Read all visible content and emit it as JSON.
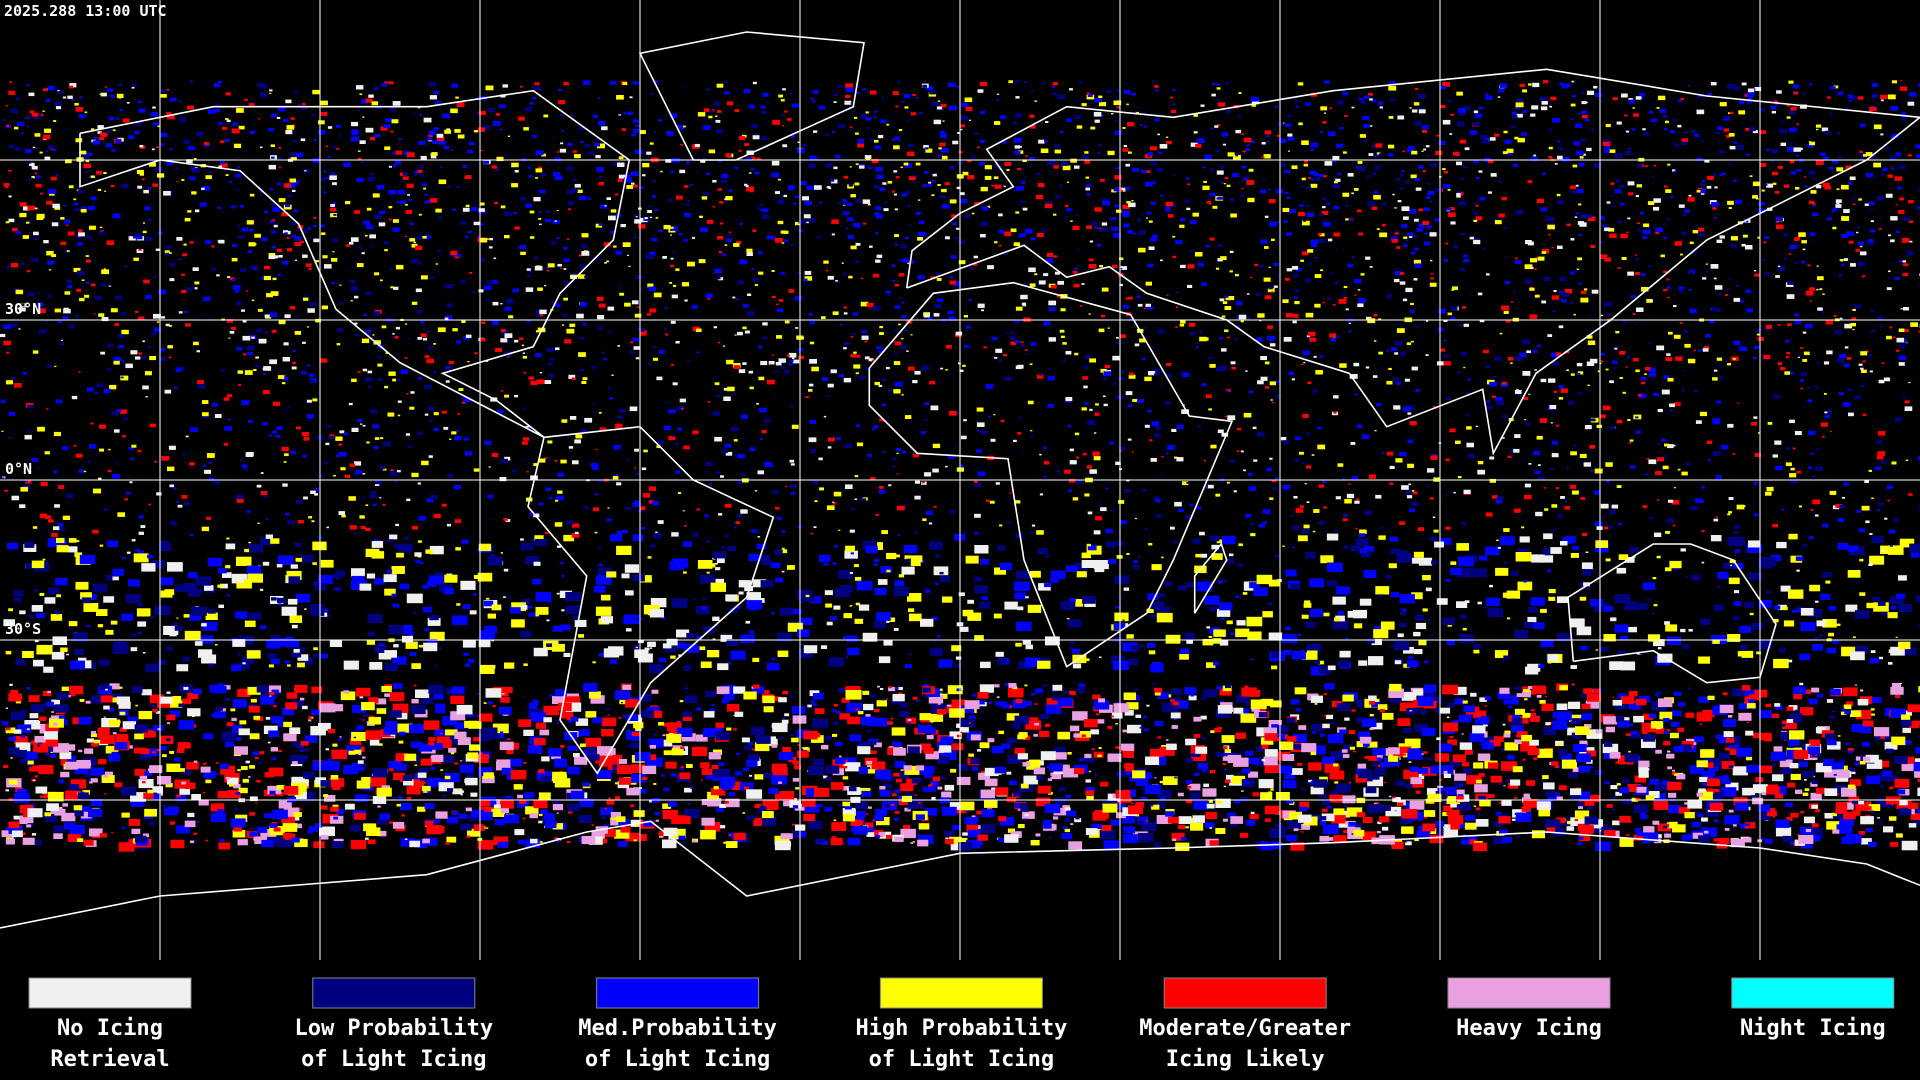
{
  "header": {
    "timestamp": "2025.288 13:00 UTC"
  },
  "latitude_labels": [
    "30°N",
    "0°N",
    "30°S"
  ],
  "legend": [
    {
      "lines": [
        "No Icing",
        "Retrieval"
      ],
      "color": "#f0f0f0"
    },
    {
      "lines": [
        "Low Probability",
        "of Light Icing"
      ],
      "color": "#000080"
    },
    {
      "lines": [
        "Med.Probability",
        "of Light Icing"
      ],
      "color": "#0000ff"
    },
    {
      "lines": [
        "High Probability",
        "of Light Icing"
      ],
      "color": "#ffff00"
    },
    {
      "lines": [
        "Moderate/Greater",
        "Icing Likely"
      ],
      "color": "#ff0000"
    },
    {
      "lines": [
        "Heavy Icing"
      ],
      "color": "#e8a0e0"
    },
    {
      "lines": [
        "Night Icing"
      ],
      "color": "#00ffff"
    }
  ]
}
